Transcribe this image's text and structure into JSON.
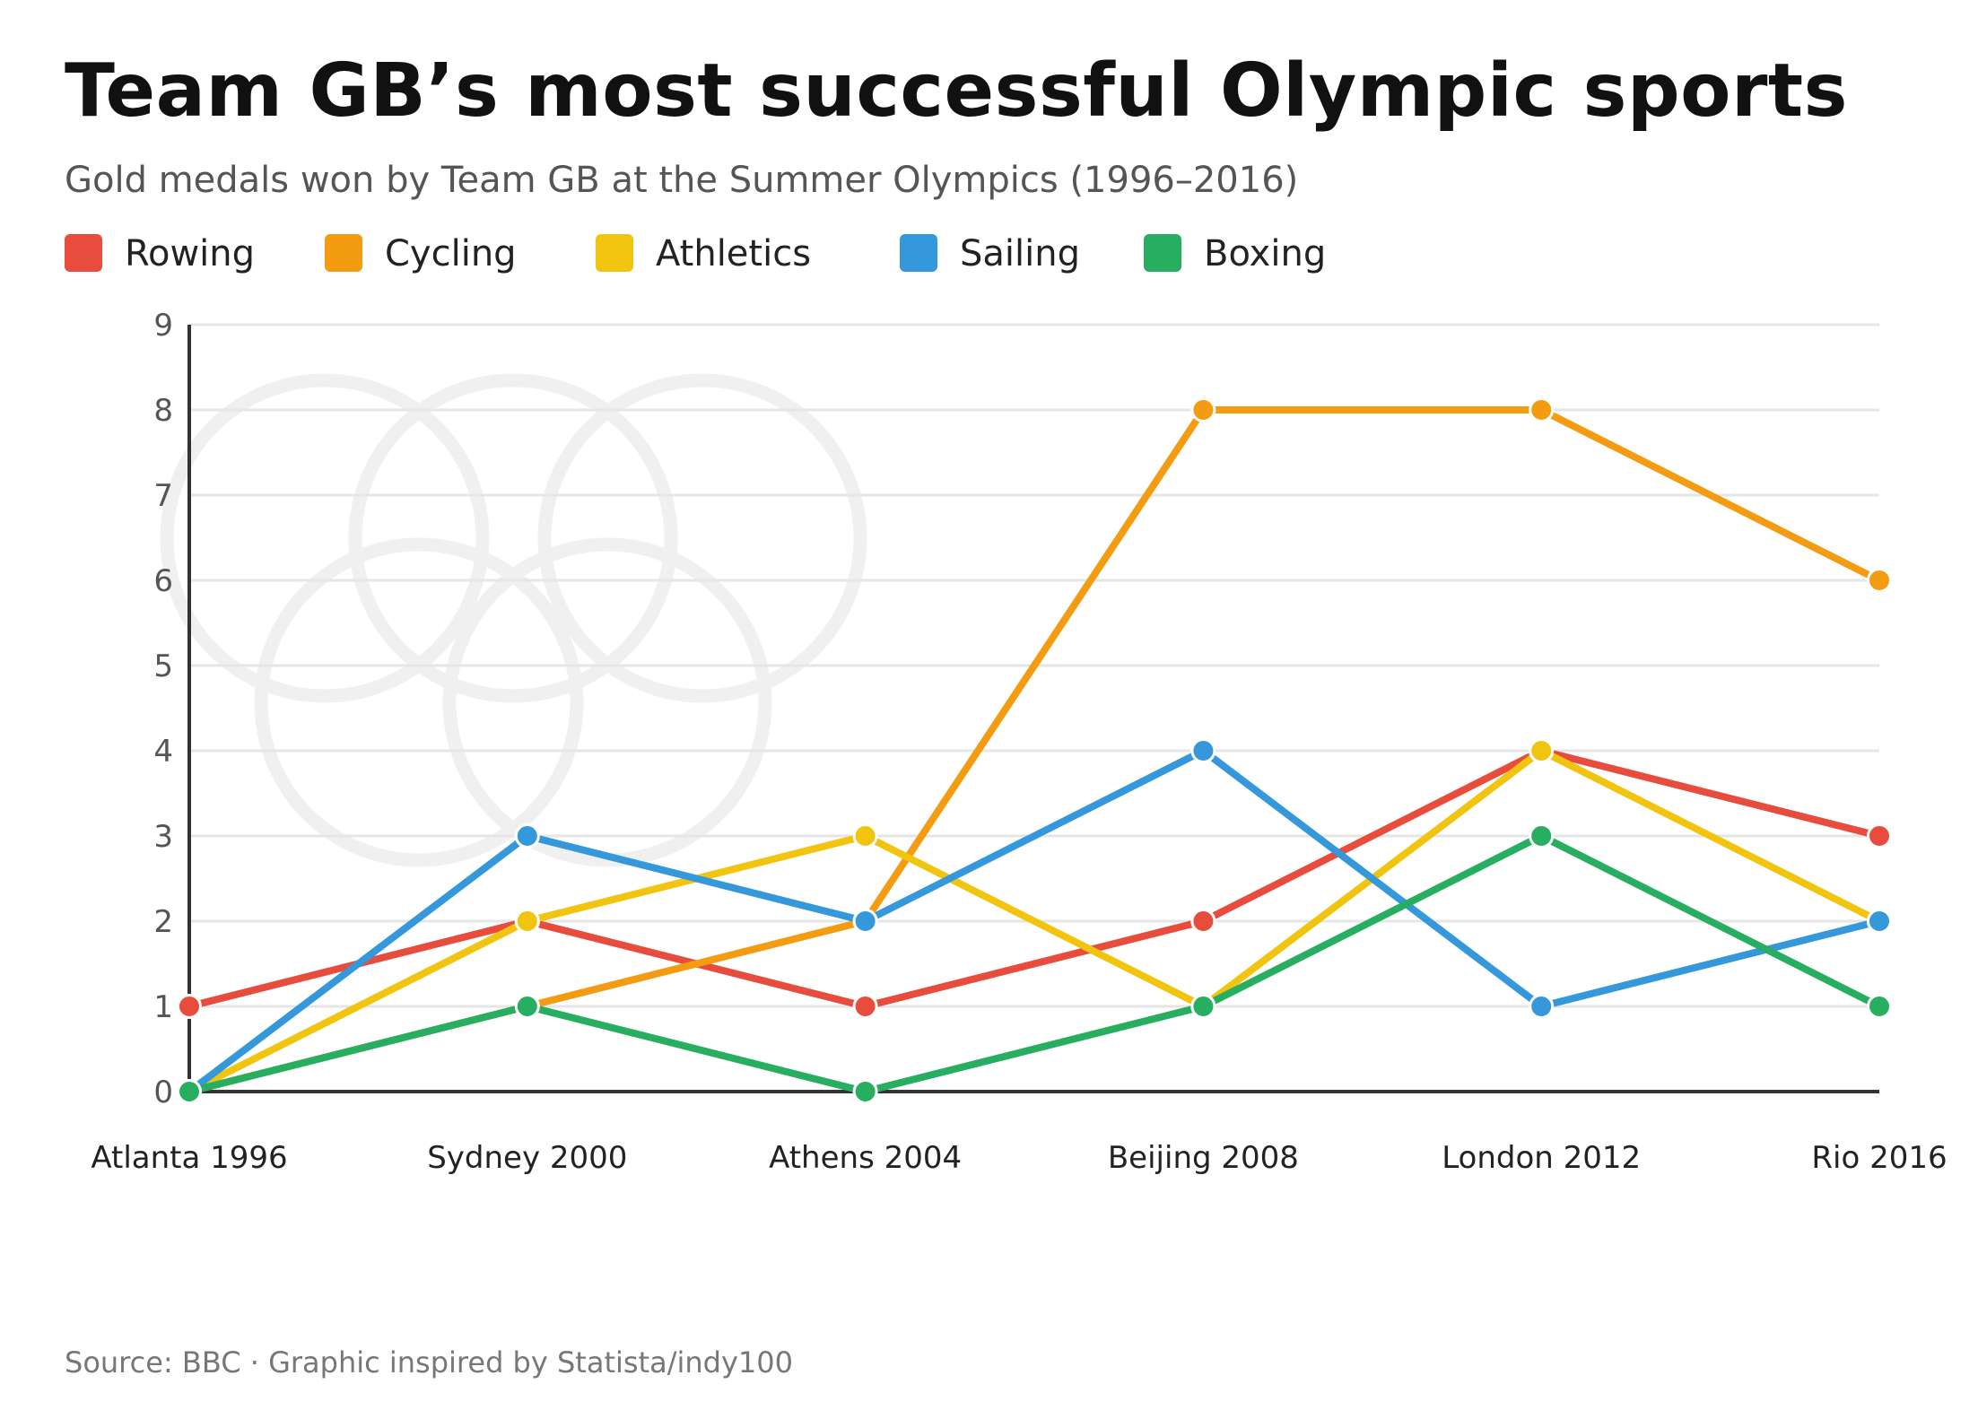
{
  "title": "Team GB’s most successful Olympic sports",
  "subtitle": "Gold medals won by Team GB at the Summer Olympics (1996–2016)",
  "source": "Source: BBC · Graphic inspired by Statista/indy100",
  "legend": [
    {
      "label": "Rowing",
      "color": "#e74c3c"
    },
    {
      "label": "Cycling",
      "color": "#f39c12"
    },
    {
      "label": "Athletics",
      "color": "#f1c40f"
    },
    {
      "label": "Sailing",
      "color": "#3498db"
    },
    {
      "label": "Boxing",
      "color": "#27ae60"
    }
  ],
  "decoration": {
    "icon": "olympic-rings-icon",
    "color": "#f0f0f0"
  },
  "chart_data": {
    "type": "line",
    "title": "Team GB’s most successful Olympic sports",
    "subtitle": "Gold medals won by Team GB at the Summer Olympics (1996–2016)",
    "xlabel": "",
    "ylabel": "",
    "categories": [
      "Atlanta 1996",
      "Sydney 2000",
      "Athens 2004",
      "Beijing 2008",
      "London 2012",
      "Rio 2016"
    ],
    "ylim": [
      0,
      9
    ],
    "yticks": [
      0,
      1,
      2,
      3,
      4,
      5,
      6,
      7,
      8,
      9
    ],
    "grid": true,
    "legend_position": "top",
    "series": [
      {
        "name": "Rowing",
        "color": "#e74c3c",
        "values": [
          1,
          2,
          1,
          2,
          4,
          3
        ]
      },
      {
        "name": "Cycling",
        "color": "#f39c12",
        "values": [
          0,
          1,
          2,
          8,
          8,
          6
        ]
      },
      {
        "name": "Athletics",
        "color": "#f1c40f",
        "values": [
          0,
          2,
          3,
          1,
          4,
          2
        ]
      },
      {
        "name": "Sailing",
        "color": "#3498db",
        "values": [
          0,
          3,
          2,
          4,
          1,
          2
        ]
      },
      {
        "name": "Boxing",
        "color": "#27ae60",
        "values": [
          0,
          1,
          0,
          1,
          3,
          1
        ]
      }
    ]
  }
}
